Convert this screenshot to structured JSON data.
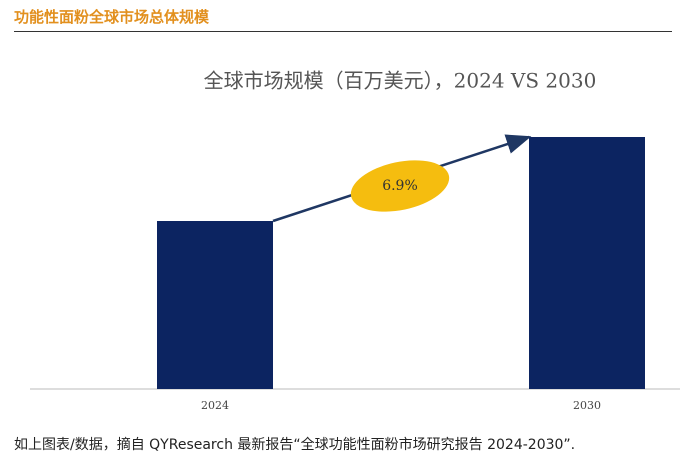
{
  "header": "功能性面粉全球市场总体规模",
  "chart_data": {
    "type": "bar",
    "title": "全球市场规模（百万美元），2024 VS 2030",
    "categories": [
      "2024",
      "2030"
    ],
    "values": [
      168,
      252
    ],
    "color": "#0c2461",
    "ylim": [
      0,
      300
    ],
    "annotation": "6.9%"
  },
  "caption": "如上图表/数据，摘自 QYResearch 最新报告“全球功能性面粉市场研究报告 2024-2030”."
}
